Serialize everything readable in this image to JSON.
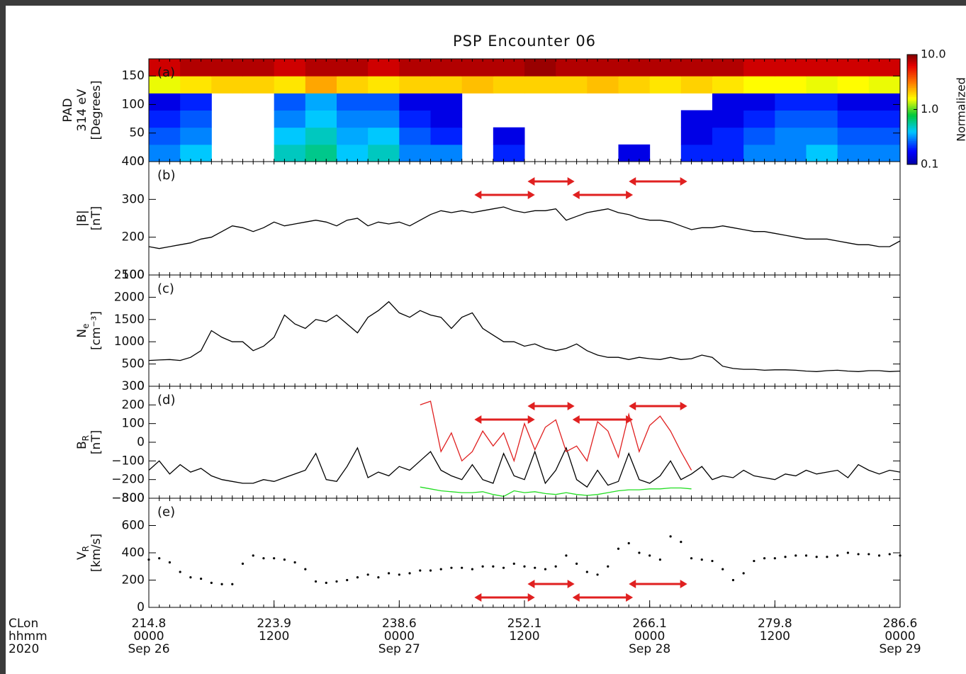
{
  "chart_data": [
    {
      "type": "heatmap",
      "title": "PSP Encounter 06",
      "panel_label": "(a)",
      "ylabel": [
        "PAD",
        "314 eV",
        "[Degrees]"
      ],
      "xlim": [
        0,
        72
      ],
      "ylim": [
        0,
        180
      ],
      "yticks": [
        0,
        50,
        100,
        150
      ],
      "time_bins": [
        0,
        3,
        6,
        9,
        12,
        15,
        18,
        21,
        24,
        27,
        30,
        33,
        36,
        39,
        42,
        45,
        48,
        51,
        54,
        57,
        60,
        63,
        66,
        69,
        72
      ],
      "angle_bins": [
        0,
        30,
        60,
        90,
        120,
        150,
        180
      ],
      "values": [
        [
          0.3,
          0.4,
          null,
          null,
          0.5,
          0.6,
          0.4,
          0.5,
          0.3,
          0.3,
          null,
          0.2,
          null,
          null,
          null,
          0.15,
          null,
          0.2,
          0.2,
          0.3,
          0.3,
          0.4,
          0.3,
          0.3
        ],
        [
          0.25,
          0.3,
          null,
          null,
          0.4,
          0.5,
          0.35,
          0.4,
          0.25,
          0.2,
          null,
          0.15,
          null,
          null,
          null,
          null,
          null,
          0.15,
          0.2,
          0.25,
          0.3,
          0.3,
          0.25,
          0.25
        ],
        [
          0.2,
          0.25,
          null,
          null,
          0.3,
          0.4,
          0.3,
          0.3,
          0.2,
          0.15,
          null,
          null,
          null,
          null,
          null,
          null,
          null,
          0.15,
          0.15,
          0.2,
          0.25,
          0.25,
          0.2,
          0.2
        ],
        [
          0.15,
          0.2,
          null,
          null,
          0.25,
          0.35,
          0.25,
          0.25,
          0.15,
          0.15,
          null,
          null,
          null,
          null,
          null,
          null,
          null,
          null,
          0.15,
          0.15,
          0.2,
          0.2,
          0.15,
          0.15
        ],
        [
          1.5,
          1.8,
          2,
          2,
          1.8,
          2.5,
          2,
          1.8,
          2,
          2,
          2.2,
          2,
          2,
          2,
          2.2,
          2,
          1.8,
          2,
          1.8,
          1.6,
          1.6,
          1.5,
          1.6,
          1.5
        ],
        [
          7,
          8,
          8,
          8,
          7,
          8,
          8,
          7,
          8,
          8,
          8,
          8,
          9,
          8,
          8,
          8,
          8,
          8,
          8,
          7,
          7,
          7,
          7,
          7
        ]
      ],
      "colorbar": {
        "label": "Normalized",
        "log": true,
        "lim": [
          0.1,
          10
        ],
        "ticks": [
          {
            "value": 10,
            "label": "10.0"
          },
          {
            "value": 1,
            "label": "1.0"
          },
          {
            "value": 0.1,
            "label": "0.1"
          }
        ]
      }
    },
    {
      "type": "line",
      "panel_label": "(b)",
      "ylabel": [
        "|B|",
        "[nT]"
      ],
      "xlim": [
        0,
        72
      ],
      "ylim": [
        100,
        400
      ],
      "yticks": [
        100,
        200,
        300,
        400
      ],
      "x": [
        0,
        1,
        2,
        3,
        4,
        5,
        6,
        7,
        8,
        9,
        10,
        11,
        12,
        13,
        14,
        15,
        16,
        17,
        18,
        19,
        20,
        21,
        22,
        23,
        24,
        25,
        26,
        27,
        28,
        29,
        30,
        31,
        32,
        33,
        34,
        35,
        36,
        37,
        38,
        39,
        40,
        41,
        42,
        43,
        44,
        45,
        46,
        47,
        48,
        49,
        50,
        51,
        52,
        53,
        54,
        55,
        56,
        57,
        58,
        59,
        60,
        61,
        62,
        63,
        64,
        65,
        66,
        67,
        68,
        69,
        70,
        71,
        72
      ],
      "series": [
        {
          "color": "#000000",
          "values": [
            175,
            170,
            175,
            180,
            185,
            195,
            200,
            215,
            230,
            225,
            215,
            225,
            240,
            230,
            235,
            240,
            245,
            240,
            230,
            245,
            250,
            230,
            240,
            235,
            240,
            230,
            245,
            260,
            270,
            265,
            270,
            265,
            270,
            275,
            280,
            270,
            265,
            270,
            270,
            275,
            245,
            255,
            265,
            270,
            275,
            265,
            260,
            250,
            245,
            245,
            240,
            230,
            220,
            225,
            225,
            230,
            225,
            220,
            215,
            215,
            210,
            205,
            200,
            195,
            195,
            195,
            190,
            185,
            180,
            180,
            175,
            175,
            190
          ]
        }
      ],
      "intervals": {
        "color": "#e02020",
        "spans": [
          [
            31.2,
            37.0
          ],
          [
            36.3,
            40.8
          ],
          [
            40.6,
            46.4
          ],
          [
            46.0,
            51.6
          ]
        ]
      }
    },
    {
      "type": "line",
      "panel_label": "(c)",
      "ylabel": [
        {
          "text": "N",
          "sub": "e"
        },
        "[cm⁻³]"
      ],
      "xlim": [
        0,
        72
      ],
      "ylim": [
        0,
        2500
      ],
      "yticks": [
        0,
        500,
        1000,
        1500,
        2000,
        2500
      ],
      "x": [
        0,
        1,
        2,
        3,
        4,
        5,
        6,
        7,
        8,
        9,
        10,
        11,
        12,
        13,
        14,
        15,
        16,
        17,
        18,
        19,
        20,
        21,
        22,
        23,
        24,
        25,
        26,
        27,
        28,
        29,
        30,
        31,
        32,
        33,
        34,
        35,
        36,
        37,
        38,
        39,
        40,
        41,
        42,
        43,
        44,
        45,
        46,
        47,
        48,
        49,
        50,
        51,
        52,
        53,
        54,
        55,
        56,
        57,
        58,
        59,
        60,
        61,
        62,
        63,
        64,
        65,
        66,
        67,
        68,
        69,
        70,
        71,
        72
      ],
      "series": [
        {
          "color": "#000000",
          "values": [
            580,
            590,
            600,
            580,
            650,
            800,
            1250,
            1100,
            1000,
            1000,
            800,
            900,
            1100,
            1600,
            1400,
            1300,
            1500,
            1450,
            1600,
            1400,
            1200,
            1550,
            1700,
            1900,
            1650,
            1550,
            1700,
            1600,
            1550,
            1300,
            1550,
            1650,
            1300,
            1150,
            1000,
            1000,
            900,
            950,
            850,
            800,
            850,
            950,
            800,
            700,
            650,
            650,
            600,
            650,
            620,
            600,
            650,
            600,
            620,
            700,
            650,
            450,
            400,
            380,
            380,
            360,
            370,
            370,
            360,
            340,
            330,
            350,
            360,
            340,
            330,
            350,
            350,
            330,
            340
          ]
        }
      ]
    },
    {
      "type": "line",
      "panel_label": "(d)",
      "ylabel": [
        {
          "text": "B",
          "sub": "R"
        },
        "[nT]"
      ],
      "xlim": [
        0,
        72
      ],
      "ylim": [
        -300,
        300
      ],
      "yticks": [
        {
          "value": -300,
          "label": "−300"
        },
        {
          "value": -200,
          "label": "−200"
        },
        {
          "value": -100,
          "label": "−100"
        },
        0,
        100,
        200,
        300
      ],
      "x": [
        0,
        1,
        2,
        3,
        4,
        5,
        6,
        7,
        8,
        9,
        10,
        11,
        12,
        13,
        14,
        15,
        16,
        17,
        18,
        19,
        20,
        21,
        22,
        23,
        24,
        25,
        26,
        27,
        28,
        29,
        30,
        31,
        32,
        33,
        34,
        35,
        36,
        37,
        38,
        39,
        40,
        41,
        42,
        43,
        44,
        45,
        46,
        47,
        48,
        49,
        50,
        51,
        52,
        53,
        54,
        55,
        56,
        57,
        58,
        59,
        60,
        61,
        62,
        63,
        64,
        65,
        66,
        67,
        68,
        69,
        70,
        71,
        72
      ],
      "series": [
        {
          "color": "#000000",
          "values": [
            -150,
            -100,
            -170,
            -120,
            -160,
            -140,
            -180,
            -200,
            -210,
            -220,
            -220,
            -200,
            -210,
            -190,
            -170,
            -150,
            -60,
            -200,
            -210,
            -130,
            -30,
            -190,
            -160,
            -180,
            -130,
            -150,
            -100,
            -50,
            -150,
            -180,
            -200,
            -120,
            -200,
            -220,
            -60,
            -180,
            -200,
            -50,
            -220,
            -150,
            -30,
            -200,
            -240,
            -150,
            -230,
            -210,
            -60,
            -200,
            -220,
            -180,
            -100,
            -200,
            -170,
            -130,
            -200,
            -180,
            -190,
            -150,
            -180,
            -190,
            -200,
            -170,
            -180,
            -150,
            -170,
            -160,
            -150,
            -190,
            -120,
            -150,
            -170,
            -150,
            -160
          ]
        },
        {
          "color": "#e02020",
          "values": [
            null,
            null,
            null,
            null,
            null,
            null,
            null,
            null,
            null,
            null,
            null,
            null,
            null,
            null,
            null,
            null,
            null,
            null,
            null,
            null,
            null,
            null,
            null,
            null,
            null,
            null,
            200,
            220,
            -50,
            50,
            -100,
            -50,
            60,
            -20,
            50,
            -100,
            100,
            -40,
            80,
            120,
            -50,
            -20,
            -100,
            110,
            60,
            -80,
            150,
            -50,
            90,
            140,
            60,
            -50,
            -150,
            null,
            null,
            null,
            null,
            null,
            null,
            null,
            null,
            null,
            null,
            null,
            null,
            null,
            null,
            null,
            null,
            null,
            null,
            null,
            null
          ]
        },
        {
          "color": "#22dd22",
          "values": [
            null,
            null,
            null,
            null,
            null,
            null,
            null,
            null,
            null,
            null,
            null,
            null,
            null,
            null,
            null,
            null,
            null,
            null,
            null,
            null,
            null,
            null,
            null,
            null,
            null,
            null,
            -240,
            -250,
            -260,
            -265,
            -270,
            -270,
            -265,
            -280,
            -290,
            -260,
            -270,
            -265,
            -275,
            -280,
            -270,
            -280,
            -285,
            -280,
            -270,
            -260,
            -255,
            -255,
            -250,
            -250,
            -245,
            -245,
            -250,
            null,
            null,
            null,
            null,
            null,
            null,
            null,
            null,
            null,
            null,
            null,
            null,
            null,
            null,
            null,
            null,
            null,
            null,
            null,
            null
          ]
        }
      ],
      "intervals": {
        "color": "#e02020",
        "spans": [
          [
            31.2,
            37.0
          ],
          [
            36.3,
            40.8
          ],
          [
            40.6,
            46.4
          ],
          [
            46.0,
            51.6
          ]
        ]
      }
    },
    {
      "type": "scatter",
      "panel_label": "(e)",
      "ylabel": [
        {
          "text": "V",
          "sub": "R"
        },
        "[km/s]"
      ],
      "xlim": [
        0,
        72
      ],
      "ylim": [
        0,
        800
      ],
      "yticks": [
        0,
        200,
        400,
        600,
        800
      ],
      "x": [
        0,
        1,
        2,
        3,
        4,
        5,
        6,
        7,
        8,
        9,
        10,
        11,
        12,
        13,
        14,
        15,
        16,
        17,
        18,
        19,
        20,
        21,
        22,
        23,
        24,
        25,
        26,
        27,
        28,
        29,
        30,
        31,
        32,
        33,
        34,
        35,
        36,
        37,
        38,
        39,
        40,
        41,
        42,
        43,
        44,
        45,
        46,
        47,
        48,
        49,
        50,
        51,
        52,
        53,
        54,
        55,
        56,
        57,
        58,
        59,
        60,
        61,
        62,
        63,
        64,
        65,
        66,
        67,
        68,
        69,
        70,
        71,
        72
      ],
      "series": [
        {
          "color": "#000000",
          "values": [
            350,
            360,
            330,
            260,
            220,
            210,
            180,
            170,
            170,
            320,
            380,
            360,
            360,
            350,
            330,
            280,
            190,
            180,
            190,
            200,
            220,
            240,
            220,
            250,
            240,
            250,
            270,
            270,
            280,
            290,
            290,
            280,
            300,
            300,
            290,
            320,
            300,
            290,
            280,
            300,
            380,
            320,
            260,
            240,
            300,
            430,
            470,
            400,
            380,
            350,
            520,
            480,
            360,
            350,
            340,
            280,
            200,
            250,
            340,
            360,
            360,
            370,
            380,
            380,
            370,
            370,
            380,
            400,
            390,
            390,
            380,
            390,
            380
          ]
        }
      ],
      "intervals": {
        "color": "#e02020",
        "spans": [
          [
            31.2,
            37.0
          ],
          [
            36.3,
            40.8
          ],
          [
            40.6,
            46.4
          ],
          [
            46.0,
            51.6
          ]
        ]
      },
      "xlabel": [
        "CLon",
        "hhmm",
        "2020"
      ],
      "xticks": [
        {
          "value": 0,
          "label": "214.8",
          "hhmm": "0000",
          "date": "Sep 26"
        },
        {
          "value": 12,
          "label": "223.9",
          "hhmm": "1200"
        },
        {
          "value": 24,
          "label": "238.6",
          "hhmm": "0000",
          "date": "Sep 27"
        },
        {
          "value": 36,
          "label": "252.1",
          "hhmm": "1200"
        },
        {
          "value": 48,
          "label": "266.1",
          "hhmm": "0000",
          "date": "Sep 28"
        },
        {
          "value": 60,
          "label": "279.8",
          "hhmm": "1200"
        },
        {
          "value": 72,
          "label": "286.6",
          "hhmm": "0000",
          "date": "Sep 29"
        }
      ]
    }
  ]
}
